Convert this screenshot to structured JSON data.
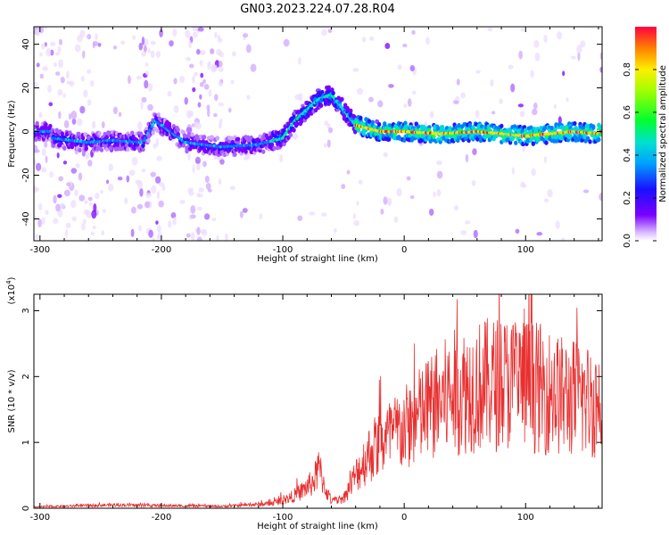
{
  "title": "GN03.2023.224.07.28.R04",
  "colors": {
    "snr_line": "#e83030",
    "accent": "#7a00ff"
  },
  "chart_data": [
    {
      "type": "heatmap",
      "xlabel": "Height of straight line (km)",
      "ylabel": "Frequency (Hz)",
      "xlim": [
        -305,
        163
      ],
      "ylim": [
        -50,
        48
      ],
      "x_ticks": [
        "-300",
        "-200",
        "-100",
        "0",
        "100"
      ],
      "x_tick_values": [
        -300,
        -200,
        -100,
        0,
        100
      ],
      "y_ticks": [
        "-40",
        "-20",
        "0",
        "20",
        "40"
      ],
      "y_tick_values": [
        -40,
        -20,
        0,
        20,
        40
      ],
      "colorbar": {
        "label": "Normalized spectral amplitude",
        "range": [
          0,
          1
        ],
        "ticks": [
          "0.0",
          "0.2",
          "0.4",
          "0.6",
          "0.8"
        ],
        "tick_values": [
          0.0,
          0.2,
          0.4,
          0.6,
          0.8
        ]
      },
      "ridge": [
        {
          "x": -290,
          "y": -3
        },
        {
          "x": -260,
          "y": -5
        },
        {
          "x": -240,
          "y": -4
        },
        {
          "x": -215,
          "y": -5
        },
        {
          "x": -205,
          "y": 5
        },
        {
          "x": -180,
          "y": -5
        },
        {
          "x": -150,
          "y": -7
        },
        {
          "x": -120,
          "y": -6
        },
        {
          "x": -100,
          "y": -3
        },
        {
          "x": -90,
          "y": 5
        },
        {
          "x": -80,
          "y": 10
        },
        {
          "x": -70,
          "y": 15
        },
        {
          "x": -60,
          "y": 17
        },
        {
          "x": -50,
          "y": 10
        },
        {
          "x": -40,
          "y": 3
        },
        {
          "x": -20,
          "y": 0
        },
        {
          "x": 0,
          "y": 0
        },
        {
          "x": 30,
          "y": -1
        },
        {
          "x": 60,
          "y": 0
        },
        {
          "x": 100,
          "y": -2
        },
        {
          "x": 140,
          "y": 0
        },
        {
          "x": 160,
          "y": -1
        }
      ]
    },
    {
      "type": "line",
      "xlabel": "Height of straight line (km)",
      "ylabel": "SNR (10 * v/v)",
      "y_multiplier": "(x10",
      "y_multiplier_exp": "4",
      "y_multiplier_close": ")",
      "xlim": [
        -305,
        163
      ],
      "ylim": [
        0,
        3.25
      ],
      "x_ticks": [
        "-300",
        "-200",
        "-100",
        "0",
        "100"
      ],
      "x_tick_values": [
        -300,
        -200,
        -100,
        0,
        100
      ],
      "y_ticks": [
        "0",
        "1",
        "2",
        "3"
      ],
      "y_tick_values": [
        0,
        1,
        2,
        3
      ],
      "series": [
        {
          "envelope": [
            {
              "x": -305,
              "y": 0.02
            },
            {
              "x": -240,
              "y": 0.05
            },
            {
              "x": -200,
              "y": 0.04
            },
            {
              "x": -150,
              "y": 0.03
            },
            {
              "x": -110,
              "y": 0.07
            },
            {
              "x": -95,
              "y": 0.15
            },
            {
              "x": -85,
              "y": 0.25
            },
            {
              "x": -75,
              "y": 0.4
            },
            {
              "x": -70,
              "y": 0.6
            },
            {
              "x": -65,
              "y": 0.3
            },
            {
              "x": -60,
              "y": 0.1
            },
            {
              "x": -50,
              "y": 0.15
            },
            {
              "x": -40,
              "y": 0.5
            },
            {
              "x": -30,
              "y": 0.8
            },
            {
              "x": -20,
              "y": 1.0
            },
            {
              "x": 0,
              "y": 1.2
            },
            {
              "x": 20,
              "y": 1.5
            },
            {
              "x": 40,
              "y": 1.75
            },
            {
              "x": 60,
              "y": 1.85
            },
            {
              "x": 80,
              "y": 1.9
            },
            {
              "x": 100,
              "y": 1.9
            },
            {
              "x": 130,
              "y": 1.7
            },
            {
              "x": 163,
              "y": 1.6
            }
          ]
        }
      ]
    }
  ]
}
